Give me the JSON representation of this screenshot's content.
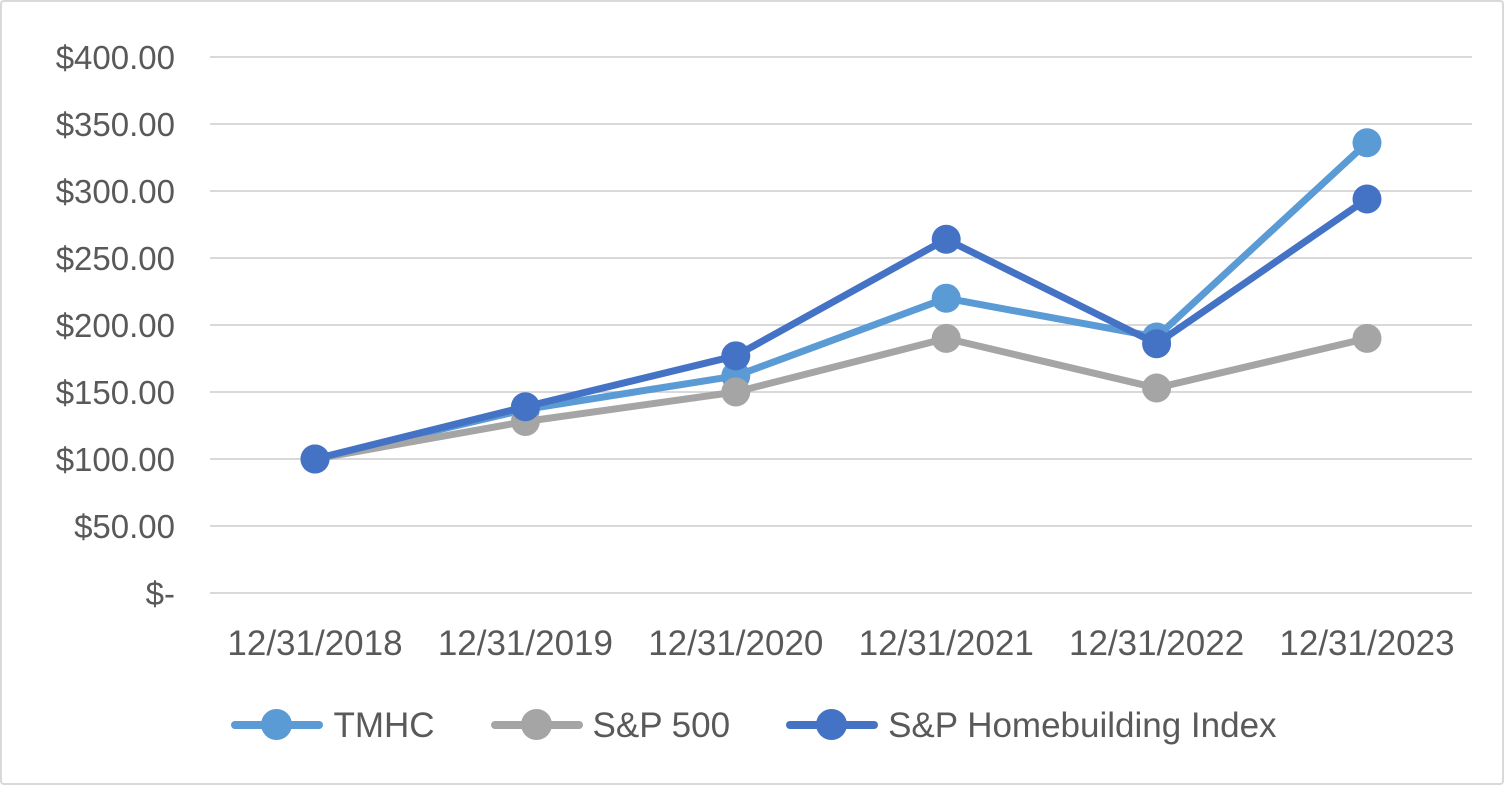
{
  "chart_data": {
    "type": "line",
    "title": "",
    "xlabel": "",
    "ylabel": "",
    "categories": [
      "12/31/2018",
      "12/31/2019",
      "12/31/2020",
      "12/31/2021",
      "12/31/2022",
      "12/31/2023"
    ],
    "series": [
      {
        "name": "TMHC",
        "color": "#5B9BD5",
        "values": [
          100,
          137,
          162,
          220,
          191,
          336
        ]
      },
      {
        "name": "S&P 500",
        "color": "#A5A5A5",
        "values": [
          100,
          128,
          150,
          190,
          153,
          190
        ]
      },
      {
        "name": "S&P Homebuilding Index",
        "color": "#4472C4",
        "values": [
          100,
          139,
          177,
          264,
          186,
          294
        ]
      }
    ],
    "y_ticks": [
      {
        "label": "$400.00",
        "value": 400
      },
      {
        "label": "$350.00",
        "value": 350
      },
      {
        "label": "$300.00",
        "value": 300
      },
      {
        "label": "$250.00",
        "value": 250
      },
      {
        "label": "$200.00",
        "value": 200
      },
      {
        "label": "$150.00",
        "value": 150
      },
      {
        "label": "$100.00",
        "value": 100
      },
      {
        "label": "$50.00",
        "value": 50
      },
      {
        "label": "$-",
        "value": 0
      }
    ],
    "ylim": [
      0,
      400
    ],
    "grid": true,
    "legend_position": "bottom",
    "marker": "circle",
    "colors": {
      "grid": "#D9D9D9",
      "text": "#595959",
      "background": "#FFFFFF",
      "frame_border": "#D9D9D9"
    }
  }
}
